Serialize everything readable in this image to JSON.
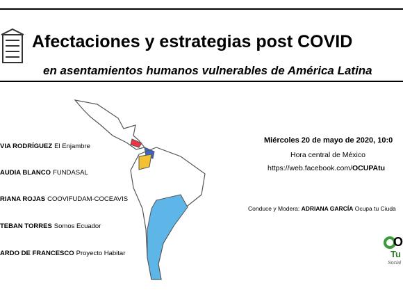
{
  "header": {
    "title": "Afectaciones y estrategias post COVID",
    "subtitle": "en asentamientos humanos vulnerables de América Latina"
  },
  "speakers": [
    {
      "name": "VIA RODRÍGUEZ",
      "org": "El Enjambre"
    },
    {
      "name": "AUDIA BLANCO",
      "org": "FUNDASAL"
    },
    {
      "name": "RIANA ROJAS",
      "org": "COOVIFUDAM-COCEAVIS"
    },
    {
      "name": "TEBAN TORRES",
      "org": "Somos Ecuador"
    },
    {
      "name": "ARDO DE FRANCESCO",
      "org": "Proyecto Habitar"
    }
  ],
  "event": {
    "date": "Miércoles 20 de mayo de 2020, 10:0",
    "timezone": "Hora central de México",
    "url_prefix": "https://web.facebook.com/",
    "url_bold": "OCUPAtu"
  },
  "moderator": {
    "label": "Conduce y Modera:",
    "name": "ADRIANA GARCÍA",
    "org": "Ocupa tu Ciuda"
  },
  "logo": {
    "line1": "OC",
    "line2": "Tu C",
    "line3": "Social"
  }
}
